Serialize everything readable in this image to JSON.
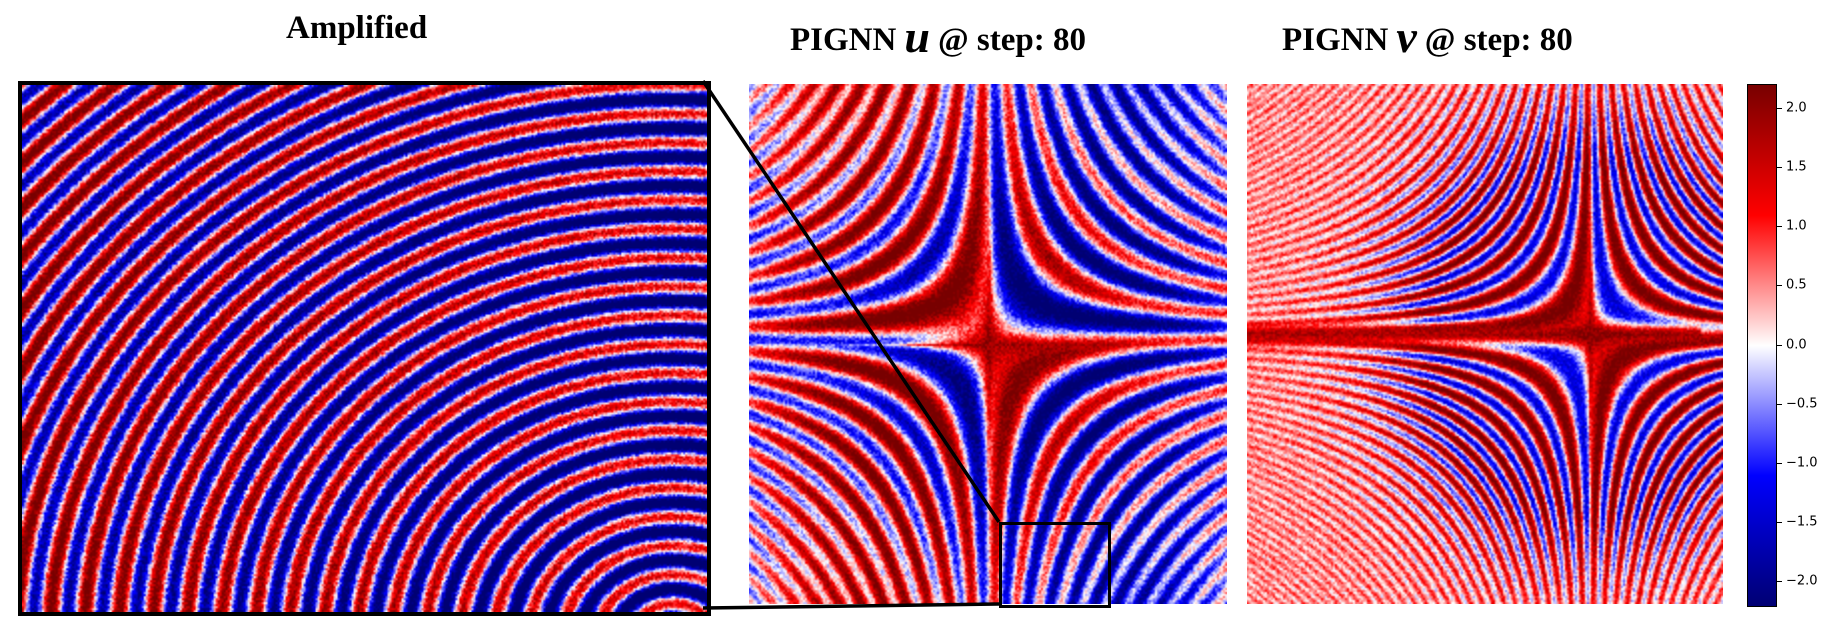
{
  "titles": {
    "amplified": "Amplified",
    "u_prefix": "PIGNN",
    "u_symbol": "u",
    "u_suffix": "@ step: 80",
    "v_prefix": "PIGNN",
    "v_symbol": "v",
    "v_suffix": "@ step: 80"
  },
  "chart_data": [
    {
      "type": "heatmap",
      "title": "Amplified",
      "description_source": "zoomed inset of the u field (lower-middle region)",
      "colormap": "seismic",
      "shared_colorbar": true
    },
    {
      "type": "heatmap",
      "title": "PIGNN u @ step: 80",
      "colormap": "seismic",
      "features": "vertical red/blue bands with a red star-shaped cross at center and dense interference fringes"
    },
    {
      "type": "heatmap",
      "title": "PIGNN v @ step: 80",
      "colormap": "seismic",
      "features": "mostly light-red background with a strong red horizontal band and a cross-shaped fringe pattern toward the right"
    }
  ],
  "colorbar": {
    "range": [
      -2.2,
      2.2
    ],
    "ticks": [
      2.0,
      1.5,
      1.0,
      0.5,
      0.0,
      -0.5,
      -1.0,
      -1.5,
      -2.0
    ],
    "tick_labels": [
      "2.0",
      "1.5",
      "1.0",
      "0.5",
      "0.0",
      "−0.5",
      "−1.0",
      "−1.5",
      "−2.0"
    ]
  },
  "colors": {
    "low": "#0a0a6e",
    "mid": "#ffffff",
    "high": "#7a0000"
  }
}
